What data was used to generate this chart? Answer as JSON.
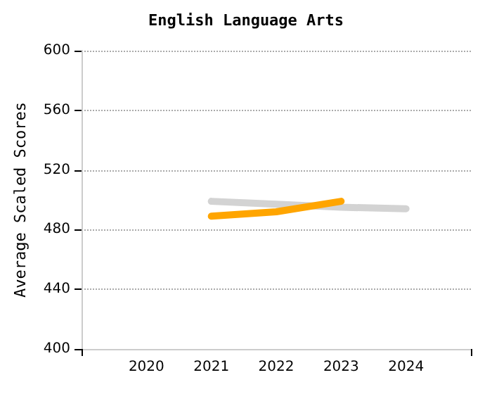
{
  "chart_data": {
    "type": "line",
    "title": "English Language Arts",
    "ylabel": "Average Scaled Scores",
    "x": [
      2021,
      2022,
      2023,
      2024
    ],
    "series": [
      {
        "color": "#d3d3d3",
        "values": [
          499,
          497,
          495,
          494
        ]
      },
      {
        "color": "#ffa500",
        "x": [
          2021,
          2022,
          2023
        ],
        "values": [
          489,
          492,
          499
        ]
      }
    ],
    "xlim": [
      2019,
      2025
    ],
    "xticks": [
      {
        "value": 2019,
        "label": null
      },
      2020,
      2021,
      2022,
      2023,
      2024,
      {
        "value": 2025,
        "label": null
      }
    ],
    "ylim": [
      400,
      600
    ],
    "yticks": [
      400,
      440,
      480,
      520,
      560,
      600
    ],
    "grid": "y",
    "marker": "none",
    "line_style": "solid"
  }
}
